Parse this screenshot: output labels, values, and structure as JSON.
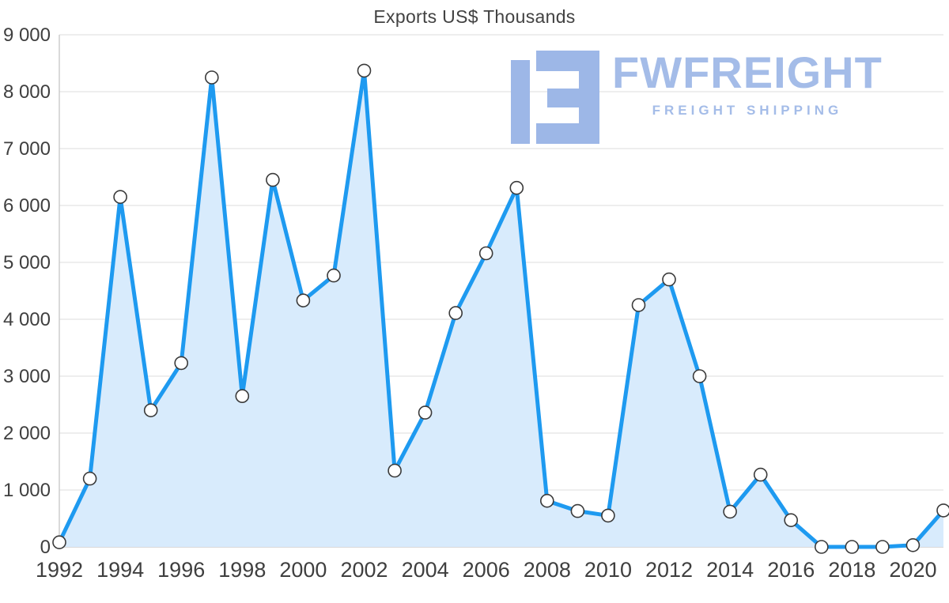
{
  "page": {
    "title": "Exports US$ Thousands"
  },
  "logo": {
    "brand": "FWFREIGHT",
    "tagline": "FREIGHT SHIPPING",
    "color": "#A4BCE8",
    "icon_color": "#9DB7E7",
    "icon_name": "fwfreight-logo-icon"
  },
  "chart_data": {
    "type": "area",
    "title": "Exports US$ Thousands",
    "xlabel": "",
    "ylabel": "",
    "legend": "none",
    "grid": "horizontal",
    "ylim": [
      0,
      9000
    ],
    "x": [
      1992,
      1993,
      1994,
      1995,
      1996,
      1997,
      1998,
      1999,
      2000,
      2001,
      2002,
      2003,
      2004,
      2005,
      2006,
      2007,
      2008,
      2009,
      2010,
      2011,
      2012,
      2013,
      2014,
      2015,
      2016,
      2017,
      2018,
      2019,
      2020,
      2021
    ],
    "values": [
      80,
      1200,
      6150,
      2400,
      3230,
      8250,
      2650,
      6450,
      4330,
      4770,
      8370,
      1340,
      2360,
      4110,
      5160,
      6310,
      810,
      630,
      550,
      4250,
      4700,
      3000,
      620,
      1270,
      470,
      0,
      0,
      0,
      30,
      640
    ],
    "x_tick_years": [
      1992,
      1994,
      1996,
      1998,
      2000,
      2002,
      2004,
      2006,
      2008,
      2010,
      2012,
      2014,
      2016,
      2018,
      2020
    ],
    "y_ticks": [
      {
        "value": 9000,
        "label": "9 000"
      },
      {
        "value": 8000,
        "label": "8 000"
      },
      {
        "value": 7000,
        "label": "7 000"
      },
      {
        "value": 6000,
        "label": "6 000"
      },
      {
        "value": 5000,
        "label": "5 000"
      },
      {
        "value": 4000,
        "label": "4 000"
      },
      {
        "value": 3000,
        "label": "3 000"
      },
      {
        "value": 2000,
        "label": "2 000"
      },
      {
        "value": 1000,
        "label": "1 000"
      },
      {
        "value": 0,
        "label": "0"
      }
    ],
    "colors": {
      "line": "#1E9AF0",
      "fill": "#D8EBFC",
      "grid": "#E4E4E4",
      "axis": "#C2C2C2",
      "marker_fill": "#FFFFFF",
      "marker_stroke": "#3A3A3A",
      "tick_text": "#3F3F3F"
    }
  }
}
